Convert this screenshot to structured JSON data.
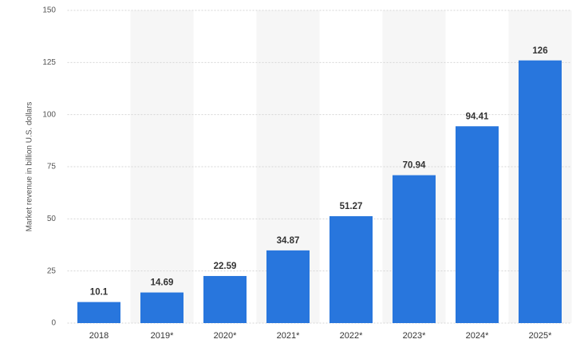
{
  "chart_data": {
    "type": "bar",
    "y_label": "Market revenue in billion U.S. dollars",
    "categories": [
      "2018",
      "2019*",
      "2020*",
      "2021*",
      "2022*",
      "2023*",
      "2024*",
      "2025*"
    ],
    "values": [
      10.1,
      14.69,
      22.59,
      34.87,
      51.27,
      70.94,
      94.41,
      126
    ],
    "color": "#2876dd",
    "ylim": [
      0,
      150
    ],
    "yticks": [
      0,
      25,
      50,
      75,
      100,
      125,
      150
    ],
    "grid": true
  }
}
